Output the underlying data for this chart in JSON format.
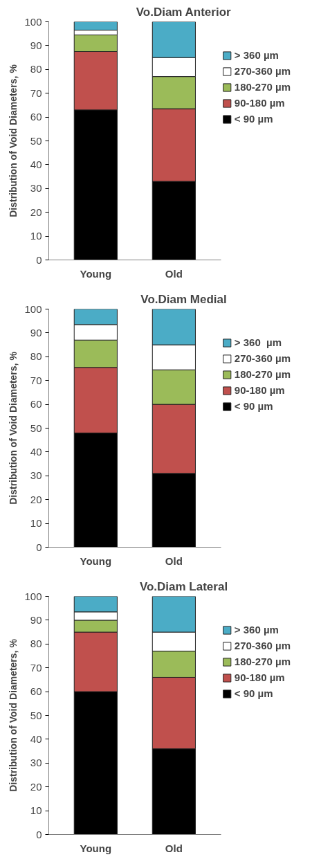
{
  "chart_data": [
    {
      "type": "bar",
      "title": "Vo.Diam Anterior",
      "ylabel": "Distribution of Void Diameters, %",
      "categories": [
        "Young",
        "Old"
      ],
      "stacked": true,
      "ylim": [
        0,
        100
      ],
      "yticks": [
        0,
        10,
        20,
        30,
        40,
        50,
        60,
        70,
        80,
        90,
        100
      ],
      "grid": false,
      "legend": "right",
      "series": [
        {
          "name": "< 90 µm",
          "color": "#000000",
          "values": [
            63,
            33
          ]
        },
        {
          "name": "90-180 µm",
          "color": "#c0504d",
          "values": [
            24.5,
            30.5
          ]
        },
        {
          "name": "180-270 µm",
          "color": "#9bbb59",
          "values": [
            7,
            13.5
          ]
        },
        {
          "name": "270-360 µm",
          "color": "#ffffff",
          "values": [
            2,
            8
          ]
        },
        {
          "name": "> 360 µm",
          "color": "#4bacc6",
          "values": [
            3.5,
            15
          ]
        }
      ]
    },
    {
      "type": "bar",
      "title": "Vo.Diam Medial",
      "ylabel": "Distribution of Void Diameters, %",
      "categories": [
        "Young",
        "Old"
      ],
      "stacked": true,
      "ylim": [
        0,
        100
      ],
      "yticks": [
        0,
        10,
        20,
        30,
        40,
        50,
        60,
        70,
        80,
        90,
        100
      ],
      "grid": false,
      "legend": "right",
      "series": [
        {
          "name": "< 90 µm",
          "color": "#000000",
          "values": [
            48,
            31
          ]
        },
        {
          "name": "90-180 µm",
          "color": "#c0504d",
          "values": [
            27.5,
            29
          ]
        },
        {
          "name": "180-270 µm",
          "color": "#9bbb59",
          "values": [
            11.5,
            14.5
          ]
        },
        {
          "name": "270-360 µm",
          "color": "#ffffff",
          "values": [
            6.5,
            10.5
          ]
        },
        {
          "name": "> 360  µm",
          "color": "#4bacc6",
          "values": [
            6.5,
            15
          ]
        }
      ]
    },
    {
      "type": "bar",
      "title": "Vo.Diam Lateral",
      "ylabel": "Distribution of Void Diameters, %",
      "categories": [
        "Young",
        "Old"
      ],
      "stacked": true,
      "ylim": [
        0,
        100
      ],
      "yticks": [
        0,
        10,
        20,
        30,
        40,
        50,
        60,
        70,
        80,
        90,
        100
      ],
      "grid": false,
      "legend": "right",
      "series": [
        {
          "name": "< 90 µm",
          "color": "#000000",
          "values": [
            60,
            36
          ]
        },
        {
          "name": "90-180 µm",
          "color": "#c0504d",
          "values": [
            25,
            30
          ]
        },
        {
          "name": "180-270 µm",
          "color": "#9bbb59",
          "values": [
            5,
            11
          ]
        },
        {
          "name": "270-360 µm",
          "color": "#ffffff",
          "values": [
            3.5,
            8
          ]
        },
        {
          "name": "> 360 µm",
          "color": "#4bacc6",
          "values": [
            6.5,
            15
          ]
        }
      ]
    }
  ]
}
